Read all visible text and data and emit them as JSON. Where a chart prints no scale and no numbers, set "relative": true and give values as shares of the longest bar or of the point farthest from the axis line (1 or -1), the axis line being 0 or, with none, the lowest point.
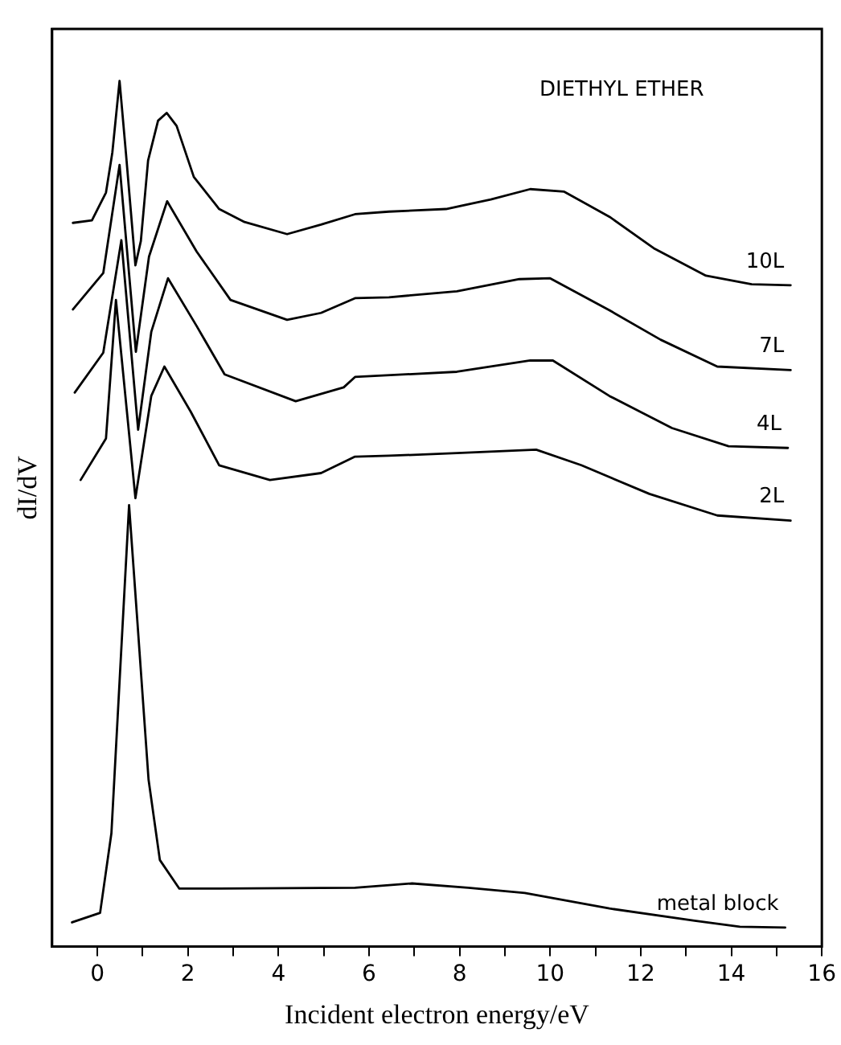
{
  "chart_data": {
    "type": "line",
    "relative": true,
    "xlabel": "Incident electron energy/eV",
    "ylabel": "dI/dV",
    "annotations": [
      "DIETHYL ETHER"
    ],
    "xlim": [
      -1,
      16
    ],
    "xticks": [
      0,
      {
        "value": 1,
        "label": null
      },
      2,
      {
        "value": 3,
        "label": null
      },
      4,
      {
        "value": 5,
        "label": null
      },
      6,
      {
        "value": 7,
        "label": null
      },
      8,
      {
        "value": 9,
        "label": null
      },
      10,
      {
        "value": 11,
        "label": null
      },
      12,
      {
        "value": 13,
        "label": null
      },
      14,
      {
        "value": 15,
        "label": null
      },
      16
    ],
    "grid": false,
    "legend": false,
    "marker": "none",
    "line_style": "solid",
    "series": [
      {
        "name": "10L",
        "color": "#000000",
        "x": [
          -0.54,
          -0.12,
          0.19,
          0.33,
          0.49,
          0.63,
          0.84,
          0.96,
          1.12,
          1.34,
          1.53,
          1.75,
          2.13,
          2.69,
          3.25,
          4.19,
          4.94,
          5.69,
          6.44,
          7.7,
          8.69,
          9.56,
          10.31,
          11.31,
          12.31,
          13.44,
          14.45,
          15.31
        ],
        "values": [
          0.836,
          0.839,
          0.871,
          0.917,
          1.0,
          0.917,
          0.787,
          0.815,
          0.908,
          0.954,
          0.963,
          0.948,
          0.889,
          0.852,
          0.837,
          0.823,
          0.834,
          0.846,
          0.849,
          0.852,
          0.863,
          0.875,
          0.872,
          0.843,
          0.806,
          0.775,
          0.765,
          0.764
        ]
      },
      {
        "name": "7L",
        "color": "#000000",
        "x": [
          -0.54,
          0.13,
          0.49,
          0.85,
          1.14,
          1.54,
          2.19,
          2.94,
          4.19,
          4.94,
          5.69,
          6.44,
          7.94,
          9.32,
          10.0,
          11.31,
          12.44,
          13.69,
          15.31
        ],
        "values": [
          0.736,
          0.778,
          0.903,
          0.687,
          0.797,
          0.861,
          0.803,
          0.747,
          0.724,
          0.732,
          0.749,
          0.75,
          0.757,
          0.771,
          0.772,
          0.735,
          0.701,
          0.67,
          0.666
        ]
      },
      {
        "name": "4L",
        "color": "#000000",
        "x": [
          -0.5,
          0.13,
          0.53,
          0.9,
          1.19,
          1.56,
          2.19,
          2.81,
          4.38,
          5.44,
          5.69,
          7.94,
          9.56,
          10.06,
          11.31,
          12.69,
          13.94,
          15.25
        ],
        "values": [
          0.64,
          0.686,
          0.816,
          0.597,
          0.71,
          0.772,
          0.717,
          0.661,
          0.63,
          0.646,
          0.658,
          0.664,
          0.677,
          0.677,
          0.636,
          0.599,
          0.578,
          0.576
        ]
      },
      {
        "name": "2L",
        "color": "#000000",
        "x": [
          -0.37,
          0.19,
          0.41,
          0.84,
          1.19,
          1.48,
          2.06,
          2.69,
          3.81,
          4.94,
          5.69,
          6.44,
          7.94,
          9.69,
          10.69,
          12.19,
          13.69,
          15.31
        ],
        "values": [
          0.539,
          0.587,
          0.747,
          0.518,
          0.636,
          0.67,
          0.618,
          0.556,
          0.539,
          0.547,
          0.566,
          0.567,
          0.57,
          0.574,
          0.556,
          0.523,
          0.498,
          0.492
        ]
      },
      {
        "name": "metal block",
        "color": "#000000",
        "x": [
          -0.56,
          0.06,
          0.31,
          0.5,
          0.7,
          0.88,
          1.13,
          1.38,
          1.81,
          2.69,
          5.69,
          6.95,
          8.19,
          9.44,
          11.31,
          13.19,
          14.19,
          15.19
        ],
        "values": [
          0.028,
          0.039,
          0.131,
          0.316,
          0.51,
          0.378,
          0.193,
          0.1,
          0.067,
          0.067,
          0.068,
          0.073,
          0.068,
          0.062,
          0.044,
          0.03,
          0.023,
          0.022
        ]
      }
    ]
  }
}
